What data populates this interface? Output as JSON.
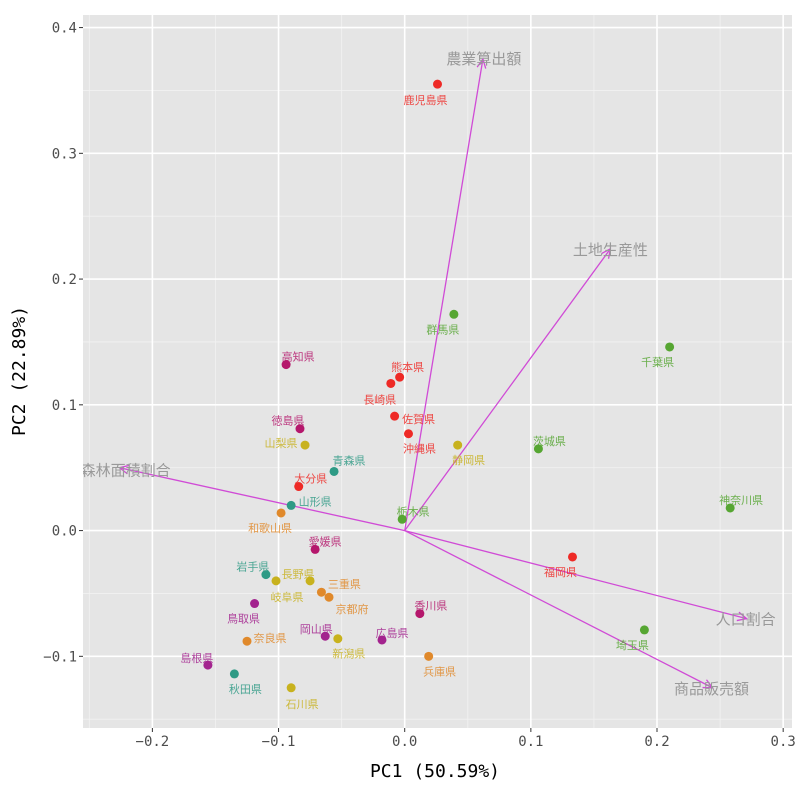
{
  "chart_data": {
    "type": "scatter",
    "subtype": "pca-biplot",
    "xlabel": "PC1 (50.59%)",
    "ylabel": "PC2 (22.89%)",
    "xlim": [
      -0.255,
      0.307
    ],
    "ylim": [
      -0.157,
      0.41
    ],
    "xticks": [
      -0.2,
      -0.1,
      0.0,
      0.1,
      0.2,
      0.3
    ],
    "xtick_labels": [
      "−0.2",
      "−0.1",
      "0.0",
      "0.1",
      "0.2",
      "0.3"
    ],
    "yticks": [
      -0.1,
      0.0,
      0.1,
      0.2,
      0.3,
      0.4
    ],
    "ytick_labels": [
      "−0.1",
      "0.0",
      "0.1",
      "0.2",
      "0.3",
      "0.4"
    ],
    "grid": true,
    "background": "#e5e5e5",
    "arrow_color": "#d04bd6",
    "groups": {
      "kyushu": "#ee2a26",
      "shikoku": "#b5176c",
      "chugoku": "#a3238e",
      "kinki": "#e0892b",
      "chubu": "#c8b21e",
      "tohoku": "#2e9a85",
      "kanto": "#56a632"
    },
    "points": [
      {
        "name": "鹿児島県",
        "x": 0.026,
        "y": 0.355,
        "group": "kyushu"
      },
      {
        "name": "熊本県",
        "x": -0.004,
        "y": 0.122,
        "group": "kyushu"
      },
      {
        "name": "長崎県",
        "x": -0.011,
        "y": 0.117,
        "group": "kyushu"
      },
      {
        "name": "佐賀県",
        "x": -0.008,
        "y": 0.091,
        "group": "kyushu"
      },
      {
        "name": "沖縄県",
        "x": 0.003,
        "y": 0.077,
        "group": "kyushu"
      },
      {
        "name": "大分県",
        "x": -0.084,
        "y": 0.035,
        "group": "kyushu"
      },
      {
        "name": "福岡県",
        "x": 0.133,
        "y": -0.021,
        "group": "kyushu"
      },
      {
        "name": "高知県",
        "x": -0.094,
        "y": 0.132,
        "group": "shikoku"
      },
      {
        "name": "徳島県",
        "x": -0.083,
        "y": 0.081,
        "group": "shikoku"
      },
      {
        "name": "愛媛県",
        "x": -0.071,
        "y": -0.015,
        "group": "shikoku"
      },
      {
        "name": "香川県",
        "x": 0.012,
        "y": -0.066,
        "group": "shikoku"
      },
      {
        "name": "鳥取県",
        "x": -0.119,
        "y": -0.058,
        "group": "chugoku"
      },
      {
        "name": "島根県",
        "x": -0.156,
        "y": -0.107,
        "group": "chugoku"
      },
      {
        "name": "岡山県",
        "x": -0.063,
        "y": -0.084,
        "group": "chugoku"
      },
      {
        "name": "広島県",
        "x": -0.018,
        "y": -0.087,
        "group": "chugoku"
      },
      {
        "name": "和歌山県",
        "x": -0.098,
        "y": 0.014,
        "group": "kinki"
      },
      {
        "name": "三重県",
        "x": -0.066,
        "y": -0.049,
        "group": "kinki"
      },
      {
        "name": "京都府",
        "x": -0.06,
        "y": -0.053,
        "group": "kinki"
      },
      {
        "name": "奈良県",
        "x": -0.125,
        "y": -0.088,
        "group": "kinki"
      },
      {
        "name": "兵庫県",
        "x": 0.019,
        "y": -0.1,
        "group": "kinki"
      },
      {
        "name": "山梨県",
        "x": -0.079,
        "y": 0.068,
        "group": "chubu"
      },
      {
        "name": "長野県",
        "x": -0.075,
        "y": -0.04,
        "group": "chubu"
      },
      {
        "name": "岐阜県",
        "x": -0.102,
        "y": -0.04,
        "group": "chubu"
      },
      {
        "name": "新潟県",
        "x": -0.053,
        "y": -0.086,
        "group": "chubu"
      },
      {
        "name": "石川県",
        "x": -0.09,
        "y": -0.125,
        "group": "chubu"
      },
      {
        "name": "静岡県",
        "x": 0.042,
        "y": 0.068,
        "group": "chubu"
      },
      {
        "name": "青森県",
        "x": -0.056,
        "y": 0.047,
        "group": "tohoku"
      },
      {
        "name": "山形県",
        "x": -0.09,
        "y": 0.02,
        "group": "tohoku"
      },
      {
        "name": "岩手県",
        "x": -0.11,
        "y": -0.035,
        "group": "tohoku"
      },
      {
        "name": "秋田県",
        "x": -0.135,
        "y": -0.114,
        "group": "tohoku"
      },
      {
        "name": "群馬県",
        "x": 0.039,
        "y": 0.172,
        "group": "kanto"
      },
      {
        "name": "千葉県",
        "x": 0.21,
        "y": 0.146,
        "group": "kanto"
      },
      {
        "name": "茨城県",
        "x": 0.106,
        "y": 0.065,
        "group": "kanto"
      },
      {
        "name": "栃木県",
        "x": -0.002,
        "y": 0.009,
        "group": "kanto"
      },
      {
        "name": "神奈川県",
        "x": 0.258,
        "y": 0.018,
        "group": "kanto"
      },
      {
        "name": "埼玉県",
        "x": 0.19,
        "y": -0.079,
        "group": "kanto"
      }
    ],
    "loadings": [
      {
        "name": "農業算出額",
        "x": 0.062,
        "y": 0.375
      },
      {
        "name": "土地生産性",
        "x": 0.163,
        "y": 0.224
      },
      {
        "name": "森林面積割合",
        "x": -0.226,
        "y": 0.05
      },
      {
        "name": "人口割合",
        "x": 0.271,
        "y": -0.07
      },
      {
        "name": "商品販売額",
        "x": 0.244,
        "y": -0.125
      }
    ]
  }
}
